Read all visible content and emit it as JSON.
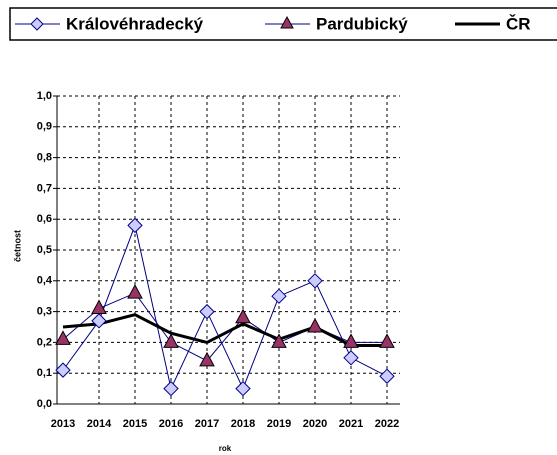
{
  "chart_data": {
    "type": "line",
    "xlabel": "rok",
    "ylabel": "četnost",
    "categories": [
      "2013",
      "2014",
      "2015",
      "2016",
      "2017",
      "2018",
      "2019",
      "2020",
      "2021",
      "2022"
    ],
    "series": [
      {
        "name": "Královéhradecký",
        "color": "#000080",
        "marker": "diamond",
        "marker_color": "#ccccff",
        "values": [
          0.11,
          0.27,
          0.58,
          0.05,
          0.3,
          0.05,
          0.35,
          0.4,
          0.15,
          0.09
        ]
      },
      {
        "name": "Pardubický",
        "color": "#000080",
        "marker": "triangle",
        "marker_color": "#993366",
        "values": [
          0.21,
          0.31,
          0.36,
          0.2,
          0.14,
          0.28,
          0.2,
          0.25,
          0.2,
          0.2
        ]
      },
      {
        "name": "ČR",
        "color": "#000000",
        "marker": "none",
        "values": [
          0.25,
          0.26,
          0.29,
          0.23,
          0.2,
          0.26,
          0.21,
          0.25,
          0.19,
          0.19
        ]
      }
    ],
    "ylim": [
      0,
      1
    ],
    "yticks": [
      {
        "value": 0,
        "label": "0,0"
      },
      {
        "value": 0.1,
        "label": "0,1"
      },
      {
        "value": 0.2,
        "label": "0,2"
      },
      {
        "value": 0.3,
        "label": "0,3"
      },
      {
        "value": 0.4,
        "label": "0,4"
      },
      {
        "value": 0.5,
        "label": "0,5"
      },
      {
        "value": 0.6,
        "label": "0,6"
      },
      {
        "value": 0.7,
        "label": "0,7"
      },
      {
        "value": 0.8,
        "label": "0,8"
      },
      {
        "value": 0.9,
        "label": "0,9"
      },
      {
        "value": 1,
        "label": "1,0"
      }
    ],
    "grid": true,
    "legend": "top"
  }
}
